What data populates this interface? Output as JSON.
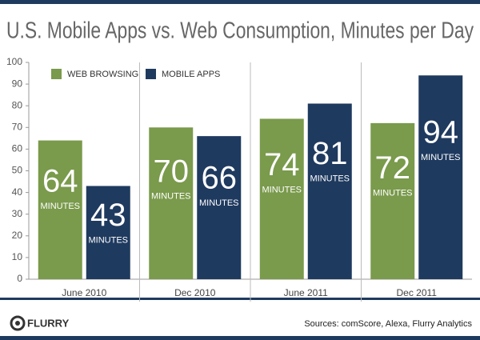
{
  "chart_data": {
    "type": "bar",
    "title": "U.S. Mobile Apps vs. Web Consumption, Minutes per Day",
    "categories": [
      "June 2010",
      "Dec 2010",
      "June 2011",
      "Dec 2011"
    ],
    "series": [
      {
        "name": "WEB BROWSING",
        "color": "#7a9a4c",
        "values": [
          64,
          70,
          74,
          72
        ]
      },
      {
        "name": "MOBILE APPS",
        "color": "#1f3a5f",
        "values": [
          43,
          66,
          81,
          94
        ]
      }
    ],
    "value_unit": "MINUTES",
    "ylim": [
      0,
      100
    ],
    "yticks": [
      0,
      10,
      20,
      30,
      40,
      50,
      60,
      70,
      80,
      90,
      100
    ],
    "legend": "top-left",
    "logo": "FLURRY",
    "source": "Sources: comScore, Alexa, Flurry Analytics"
  }
}
